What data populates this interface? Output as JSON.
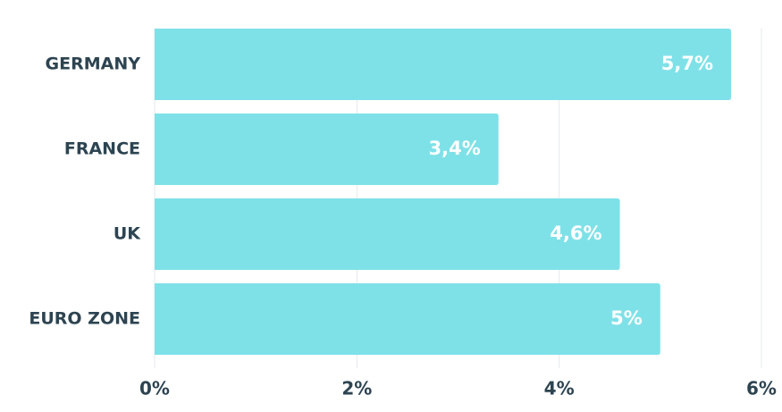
{
  "chart_data": {
    "type": "bar",
    "orientation": "horizontal",
    "categories": [
      "GERMANY",
      "FRANCE",
      "UK",
      "EURO ZONE"
    ],
    "values": [
      5.7,
      3.4,
      4.6,
      5
    ],
    "value_labels": [
      "5,7%",
      "3,4%",
      "4,6%",
      "5%"
    ],
    "color": "#7fe1e8",
    "xlim": [
      0,
      6
    ],
    "xticks": [
      {
        "value": 0,
        "label": "0%"
      },
      {
        "value": 2,
        "label": "2%"
      },
      {
        "value": 4,
        "label": "4%"
      },
      {
        "value": 6,
        "label": "6%"
      }
    ],
    "grid": true
  }
}
